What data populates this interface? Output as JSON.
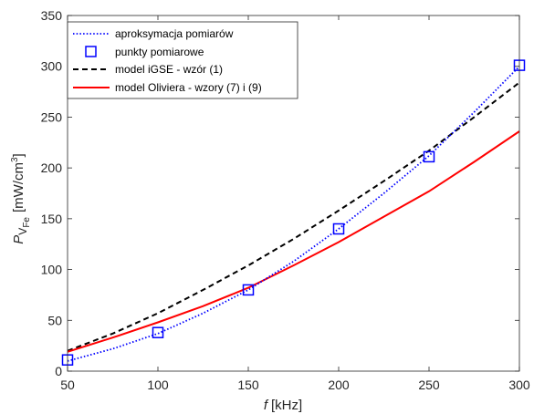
{
  "chart_data": {
    "type": "line",
    "xlabel_italic": "f",
    "xlabel_unit": "[kHz]",
    "ylabel_base": "P",
    "ylabel_sub": "V",
    "ylabel_subsub": "Fe",
    "ylabel_unit": "[mW/cm",
    "ylabel_exp": "3",
    "ylabel_close": "]",
    "xlim": [
      50,
      300
    ],
    "ylim": [
      0,
      350
    ],
    "xticks": [
      50,
      100,
      150,
      200,
      250,
      300
    ],
    "yticks": [
      0,
      50,
      100,
      150,
      200,
      250,
      300,
      350
    ],
    "grid": false,
    "legend_position": "top-left",
    "series": [
      {
        "name": "aproksymacja pomiarów",
        "style": "dotted",
        "color": "#0000ff",
        "x": [
          50,
          75,
          100,
          125,
          150,
          175,
          200,
          225,
          250,
          275,
          300
        ],
        "y": [
          10,
          22,
          37,
          57,
          80,
          108,
          140,
          175,
          212,
          255,
          300
        ]
      },
      {
        "name": "punkty pomiarowe",
        "style": "square-markers",
        "color": "#0000ff",
        "x": [
          50,
          100,
          150,
          200,
          250,
          300
        ],
        "y": [
          11,
          38,
          80,
          140,
          211,
          301
        ]
      },
      {
        "name": "model iGSE - wzór (1)",
        "style": "dashed",
        "color": "#000000",
        "x": [
          50,
          75,
          100,
          125,
          150,
          175,
          200,
          225,
          250,
          275,
          300
        ],
        "y": [
          20,
          37,
          57,
          80,
          104,
          130,
          158,
          187,
          217,
          250,
          284
        ]
      },
      {
        "name": "model Oliviera - wzory (7) i (9)",
        "style": "solid",
        "color": "#ff0000",
        "x": [
          50,
          75,
          100,
          125,
          150,
          175,
          200,
          225,
          250,
          275,
          300
        ],
        "y": [
          19,
          33,
          48,
          64,
          82,
          104,
          127,
          152,
          177,
          206,
          236
        ]
      }
    ]
  }
}
